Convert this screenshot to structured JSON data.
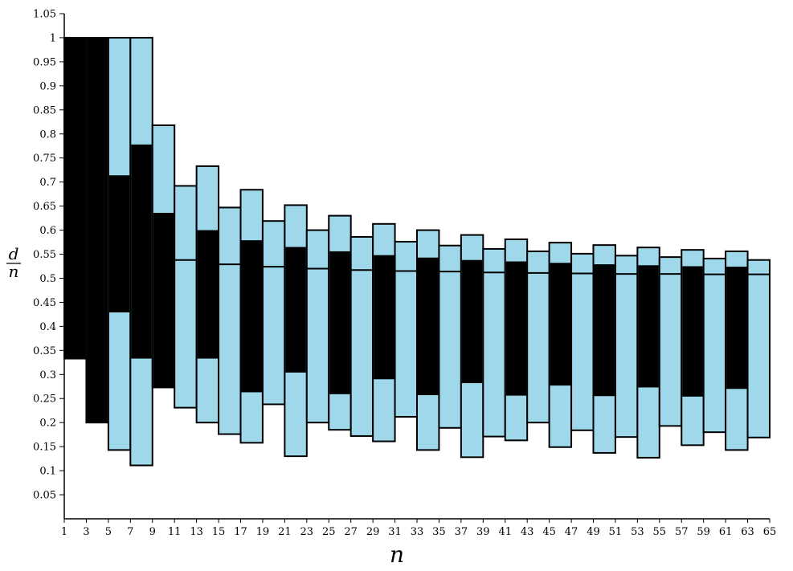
{
  "chart_data": {
    "type": "bar",
    "title": "",
    "xlabel": "n",
    "ylabel_numerator": "d",
    "ylabel_denominator": "n",
    "ylim": [
      0,
      1.05
    ],
    "xlim": [
      1,
      65
    ],
    "yticks": [
      "0.05",
      "0.1",
      "0.15",
      "0.2",
      "0.25",
      "0.3",
      "0.35",
      "0.4",
      "0.45",
      "0.5",
      "0.55",
      "0.6",
      "0.65",
      "0.7",
      "0.75",
      "0.8",
      "0.85",
      "0.9",
      "0.95",
      "1",
      "1.05"
    ],
    "xticks": [
      "1",
      "3",
      "5",
      "7",
      "9",
      "11",
      "13",
      "15",
      "17",
      "19",
      "21",
      "23",
      "25",
      "27",
      "29",
      "31",
      "33",
      "35",
      "37",
      "39",
      "41",
      "43",
      "45",
      "47",
      "49",
      "51",
      "53",
      "55",
      "57",
      "59",
      "61",
      "63",
      "65"
    ],
    "colors": {
      "outer": "#9fd8ea",
      "inner": "#000000",
      "outline": "#000000"
    },
    "series": [
      {
        "name": "outer",
        "values": [
          [
            0.333,
            1
          ],
          [
            0.2,
            1
          ],
          [
            0.143,
            1
          ],
          [
            0.111,
            1
          ],
          [
            0.273,
            0.818
          ],
          [
            0.231,
            0.692
          ],
          [
            0.2,
            0.733
          ],
          [
            0.176,
            0.647
          ],
          [
            0.158,
            0.684
          ],
          [
            0.238,
            0.619
          ],
          [
            0.13,
            0.652
          ],
          [
            0.2,
            0.6
          ],
          [
            0.185,
            0.63
          ],
          [
            0.172,
            0.586
          ],
          [
            0.161,
            0.613
          ],
          [
            0.212,
            0.576
          ],
          [
            0.143,
            0.6
          ],
          [
            0.189,
            0.568
          ],
          [
            0.128,
            0.59
          ],
          [
            0.171,
            0.561
          ],
          [
            0.163,
            0.581
          ],
          [
            0.2,
            0.556
          ],
          [
            0.149,
            0.574
          ],
          [
            0.184,
            0.551
          ],
          [
            0.137,
            0.569
          ],
          [
            0.17,
            0.547
          ],
          [
            0.127,
            0.564
          ],
          [
            0.193,
            0.544
          ],
          [
            0.153,
            0.559
          ],
          [
            0.18,
            0.541
          ],
          [
            0.143,
            0.556
          ],
          [
            0.169,
            0.538
          ]
        ]
      },
      {
        "name": "inner",
        "values": [
          [
            0.333,
            1
          ],
          [
            0.2,
            1
          ],
          [
            0.429,
            0.714
          ],
          [
            0.333,
            0.778
          ],
          [
            0.273,
            0.636
          ],
          [
            0.538,
            0.538
          ],
          [
            0.333,
            0.6
          ],
          [
            0.529,
            0.529
          ],
          [
            0.263,
            0.579
          ],
          [
            0.524,
            0.524
          ],
          [
            0.304,
            0.565
          ],
          [
            0.52,
            0.52
          ],
          [
            0.259,
            0.556
          ],
          [
            0.517,
            0.517
          ],
          [
            0.29,
            0.548
          ],
          [
            0.515,
            0.515
          ],
          [
            0.257,
            0.543
          ],
          [
            0.514,
            0.514
          ],
          [
            0.282,
            0.538
          ],
          [
            0.512,
            0.512
          ],
          [
            0.256,
            0.535
          ],
          [
            0.511,
            0.511
          ],
          [
            0.277,
            0.532
          ],
          [
            0.51,
            0.51
          ],
          [
            0.255,
            0.529
          ],
          [
            0.509,
            0.509
          ],
          [
            0.273,
            0.527
          ],
          [
            0.509,
            0.509
          ],
          [
            0.254,
            0.525
          ],
          [
            0.508,
            0.508
          ],
          [
            0.27,
            0.524
          ],
          [
            0.508,
            0.508
          ]
        ]
      }
    ],
    "grid": false
  }
}
